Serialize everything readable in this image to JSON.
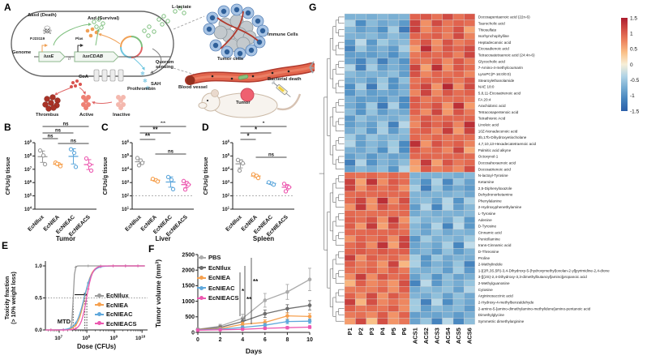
{
  "panel_letters": {
    "a": "A",
    "b": "B",
    "c": "C",
    "d": "D",
    "e": "E",
    "f": "F",
    "g": "G"
  },
  "colors": {
    "gray": "#9a9a9a",
    "dark_gray": "#6e6e6e",
    "pbs_gray": "#ababab",
    "orange": "#F6A04E",
    "blue": "#5FA8DC",
    "magenta": "#EC58B0",
    "axis": "#222222",
    "sig": "#444444"
  },
  "panel_a": {
    "labels": {
      "death": "Δasd (Death)",
      "survival": "Asd (Survival)",
      "l_lactate": "L-lactate",
      "genome": "Genome",
      "gene1": "luxE",
      "gene2": "luxCDAB",
      "promoter1": "PJ23119",
      "promoter2": "Plas",
      "quorum": "Quorum sensing",
      "coa": "CoA",
      "sah": "SAH",
      "prothrombin": "Prothrombin",
      "thrombus": "Thrombus",
      "active": "Active",
      "inactive": "Inactive",
      "immune_cells": "Immune Cells",
      "tumor_cells": "Tumor cells",
      "blood_vessel": "Blood vessel",
      "bacterial_death": "Bacterial death",
      "tumor": "Tumor"
    }
  },
  "chart_data": [
    {
      "panel": "B",
      "type": "scatter",
      "scale": "log",
      "title": "Tumor",
      "ylabel": "CFUs/g tissue",
      "decades": [
        4,
        9
      ],
      "groups": [
        "EcNIlux",
        "EcNIEA",
        "EcNIEAC",
        "EcNIEACS"
      ],
      "group_colors": [
        "#9a9a9a",
        "#F6A04E",
        "#5FA8DC",
        "#EC58B0"
      ],
      "points": [
        [
          260000000.0,
          110000000.0,
          24000000.0
        ],
        [
          32000000.0,
          24000000.0,
          17000000.0,
          26000000.0
        ],
        [
          320000000.0,
          170000000.0,
          15000000.0
        ],
        [
          65000000.0,
          22000000.0,
          8000000.0
        ]
      ],
      "sig": [
        {
          "a": 0,
          "b": 3,
          "label": "ns",
          "y": 6
        },
        {
          "a": 0,
          "b": 2,
          "label": "ns",
          "y": 14
        },
        {
          "a": 0,
          "b": 1,
          "label": "ns",
          "y": 21
        },
        {
          "a": 1,
          "b": 3,
          "label": "ns",
          "y": 27
        }
      ]
    },
    {
      "panel": "C",
      "type": "scatter",
      "scale": "log",
      "title": "Liver",
      "ylabel": "CFUs/g tissue",
      "decades": [
        1,
        6
      ],
      "limit": 100,
      "groups": [
        "EcNIlux",
        "EcNIEA",
        "EcNIEAC",
        "EcNIEACS"
      ],
      "group_colors": [
        "#9a9a9a",
        "#F6A04E",
        "#5FA8DC",
        "#EC58B0"
      ],
      "points": [
        [
          70000.0,
          45000.0,
          30000.0,
          20000.0
        ],
        [
          1900.0,
          1500.0,
          1200.0
        ],
        [
          2600.0,
          1600.0,
          320.0
        ],
        [
          1300.0,
          900.0,
          700.0,
          300.0
        ]
      ],
      "sig": [
        {
          "a": 0,
          "b": 3,
          "label": "**",
          "y": 6
        },
        {
          "a": 0,
          "b": 2,
          "label": "**",
          "y": 14
        },
        {
          "a": 0,
          "b": 1,
          "label": "**",
          "y": 22
        },
        {
          "a": 1,
          "b": 3,
          "label": "ns",
          "y": 40
        }
      ]
    },
    {
      "panel": "D",
      "type": "scatter",
      "scale": "log",
      "title": "Spleen",
      "ylabel": "CFUs/g tissue",
      "decades": [
        1,
        6
      ],
      "limit": 100,
      "groups": [
        "EcNIlux",
        "EcNIEA",
        "EcNIEAC",
        "EcNIEACS"
      ],
      "group_colors": [
        "#9a9a9a",
        "#F6A04E",
        "#5FA8DC",
        "#EC58B0"
      ],
      "points": [
        [
          50000.0,
          38000.0,
          28000.0,
          8000.0
        ],
        [
          4200.0,
          3200.0,
          2200.0
        ],
        [
          1050.0,
          850.0,
          700.0
        ],
        [
          800.0,
          500.0,
          450.0,
          220.0
        ]
      ],
      "sig": [
        {
          "a": 0,
          "b": 3,
          "label": "*",
          "y": 6
        },
        {
          "a": 0,
          "b": 2,
          "label": "*",
          "y": 14
        },
        {
          "a": 0,
          "b": 1,
          "label": "*",
          "y": 22
        },
        {
          "a": 1,
          "b": 3,
          "label": "ns",
          "y": 44
        }
      ]
    },
    {
      "panel": "E",
      "type": "sigmoid",
      "xlabel": "Dose (CFUs)",
      "ylabel_line1": "Toxicity fraction",
      "ylabel_line2": "(> 10% weight loss)",
      "yticks": [
        0.0,
        0.5,
        1.0
      ],
      "xticks_exp": [
        7,
        8,
        9,
        10
      ],
      "mtd_label": "MTD",
      "dotted_y": 0.5,
      "dotted_x_log": [
        7.505,
        7.93,
        8.0
      ],
      "series": [
        {
          "name": "EcNIlux",
          "color": "#9a9a9a",
          "ec50": 32000000.0,
          "hill": 18
        },
        {
          "name": "EcNIEA",
          "color": "#F6A04E",
          "ec50": 83000000.0,
          "hill": 3.4
        },
        {
          "name": "EcNIEAC",
          "color": "#5FA8DC",
          "ec50": 80000000.0,
          "hill": 3.0
        },
        {
          "name": "EcNIEACS",
          "color": "#EC58B0",
          "ec50": 98000000.0,
          "hill": 4.2
        }
      ]
    },
    {
      "panel": "F",
      "type": "line",
      "xlabel": "Days",
      "ylabel": "Tumor volume (mm3)",
      "x": [
        0,
        2,
        4,
        6,
        8,
        10
      ],
      "ylim": [
        0,
        2500
      ],
      "yticks": [
        0,
        500,
        1000,
        1500,
        2000,
        2500
      ],
      "sig": [
        "*",
        "**",
        "**"
      ],
      "series": [
        {
          "name": "PBS",
          "color": "#ababab",
          "values": [
            100,
            200,
            450,
            1030,
            1300,
            1700
          ],
          "err": [
            40,
            60,
            130,
            220,
            240,
            360
          ]
        },
        {
          "name": "EcNIlux",
          "color": "#6e6e6e",
          "values": [
            90,
            160,
            350,
            600,
            760,
            870
          ],
          "err": [
            30,
            50,
            90,
            120,
            130,
            150
          ]
        },
        {
          "name": "EcNIEA",
          "color": "#F6A04E",
          "values": [
            85,
            120,
            260,
            320,
            530,
            510
          ],
          "err": [
            25,
            40,
            70,
            80,
            100,
            95
          ]
        },
        {
          "name": "EcNIEAC",
          "color": "#5FA8DC",
          "values": [
            80,
            100,
            160,
            230,
            350,
            360
          ],
          "err": [
            20,
            30,
            50,
            60,
            70,
            70
          ]
        },
        {
          "name": "EcNIEACS",
          "color": "#EC58B0",
          "values": [
            70,
            80,
            100,
            130,
            150,
            170
          ],
          "err": [
            15,
            20,
            30,
            35,
            40,
            45
          ]
        }
      ]
    },
    {
      "panel": "G",
      "type": "heatmap",
      "columns": [
        "P1",
        "P2",
        "P3",
        "P4",
        "P5",
        "P6",
        "ACS1",
        "ACS2",
        "ACS3",
        "ACS4",
        "ACS5",
        "ACS6"
      ],
      "colorbar_ticks": [
        1.5,
        1,
        0.5,
        0,
        -0.5,
        -1,
        -1.5
      ],
      "rows": [
        {
          "name": "Docosapentaenoic acid (22n-6)",
          "p": -0.7,
          "acs": 1.0
        },
        {
          "name": "Taurocholic acid",
          "p": -0.75,
          "acs": 0.95
        },
        {
          "name": "Thiosulfate",
          "p": -0.8,
          "acs": 0.9
        },
        {
          "name": "Isorhynchophylline",
          "p": -0.7,
          "acs": 0.95
        },
        {
          "name": "Heptadecanoic acid",
          "p": -0.65,
          "acs": 0.9
        },
        {
          "name": "Eicosadienoic acid",
          "p": -0.75,
          "acs": 1.0
        },
        {
          "name": "Tetracosatetraenoic acid (24:4n-6)",
          "p": -0.85,
          "acs": 0.95
        },
        {
          "name": "Glycocholic acid",
          "p": -0.9,
          "acs": 0.9
        },
        {
          "name": "7-Amino-4-methylcoumarin",
          "p": -0.75,
          "acs": 0.95
        },
        {
          "name": "LysoPC(P-16:0/0:0)",
          "p": -0.7,
          "acs": 0.9
        },
        {
          "name": "Stearoylethanolamide",
          "p": -0.75,
          "acs": 0.95
        },
        {
          "name": "NAE 18:0",
          "p": -0.8,
          "acs": 1.0
        },
        {
          "name": "5,8,11-Eicosatrienoic acid",
          "p": -0.8,
          "acs": 0.95
        },
        {
          "name": "FA 20:4",
          "p": -0.85,
          "acs": 0.9
        },
        {
          "name": "Arachidonic acid",
          "p": -0.8,
          "acs": 0.95
        },
        {
          "name": "Tetracosapentenoic acid",
          "p": -0.75,
          "acs": 0.9
        },
        {
          "name": "Tetrathionic Acid",
          "p": -0.7,
          "acs": 0.95
        },
        {
          "name": "Linoleic acid",
          "p": -0.75,
          "acs": 1.0
        },
        {
          "name": "10Z-Nonadecenoic acid",
          "p": -0.7,
          "acs": 0.95
        },
        {
          "name": "3b,17b-Dihydroxyetiocholane",
          "p": -0.65,
          "acs": 0.9
        },
        {
          "name": "4,7,10,13-Hexadecatetraenoic acid",
          "p": -0.7,
          "acs": 0.95
        },
        {
          "name": "Palmitic acid alkyne",
          "p": -0.75,
          "acs": 0.9
        },
        {
          "name": "Octoxynol-1",
          "p": -0.8,
          "acs": 0.95
        },
        {
          "name": "Docosahexaenoic acid",
          "p": -0.75,
          "acs": 0.9
        },
        {
          "name": "Docosatrienoic acid",
          "p": -0.7,
          "acs": 0.85
        },
        {
          "name": "N-lactoyl-Tyrosine",
          "p": 0.9,
          "acs": -0.7
        },
        {
          "name": "Ketamine",
          "p": 0.95,
          "acs": -0.75
        },
        {
          "name": "2,5-Diphenyloxazole",
          "p": 0.9,
          "acs": -0.8
        },
        {
          "name": "Dehydronorketamine",
          "p": 0.95,
          "acs": -0.7
        },
        {
          "name": "Phenylalanine",
          "p": 1.0,
          "acs": -0.65
        },
        {
          "name": "2-Hydroxyphenethylamine",
          "p": 0.95,
          "acs": -0.7
        },
        {
          "name": "L-Tyrosine",
          "p": 0.9,
          "acs": -0.7
        },
        {
          "name": "Adenine",
          "p": 0.95,
          "acs": -0.65
        },
        {
          "name": "D-Tyrosine",
          "p": 0.9,
          "acs": -0.7
        },
        {
          "name": "Cinnamic acid",
          "p": 0.95,
          "acs": -0.7
        },
        {
          "name": "Penicillamine",
          "p": 0.9,
          "acs": -0.65
        },
        {
          "name": "trans-Cinnamic acid",
          "p": 0.95,
          "acs": -0.7
        },
        {
          "name": "D-Threonine",
          "p": 1.0,
          "acs": -0.75
        },
        {
          "name": "Proline",
          "p": 0.9,
          "acs": -0.7
        },
        {
          "name": "2-Methylindole",
          "p": 0.85,
          "acs": -0.75
        },
        {
          "name": "1-[(2R,3S,5R)-3,4-Dihydroxy-5-(hydroxymethyl)oxolan-2-yl]pyrimidine-2,4-dione",
          "p": 0.9,
          "acs": -0.7
        },
        {
          "name": "3-[[(2S)-2,4-Dihydroxy-3,3-dimethylbutanoyl]amino]propanoic acid",
          "p": 0.95,
          "acs": -0.75
        },
        {
          "name": "2-Methylguanosine",
          "p": 0.8,
          "acs": -0.7
        },
        {
          "name": "Cytosine",
          "p": 0.85,
          "acs": -0.65
        },
        {
          "name": "Argininosuccinic acid",
          "p": 0.9,
          "acs": -0.7
        },
        {
          "name": "2-Hydroxy-4-methylbenzaldehyde",
          "p": 0.85,
          "acs": -0.75
        },
        {
          "name": "2-amino-5-[amino-dimethylamino-methylidene]amino-pentanoic acid",
          "p": 0.9,
          "acs": -0.7
        },
        {
          "name": "Dimethylglycine",
          "p": 0.85,
          "acs": -0.8
        },
        {
          "name": "Symmetric dimethylarginine",
          "p": 0.8,
          "acs": -0.75
        }
      ]
    }
  ]
}
